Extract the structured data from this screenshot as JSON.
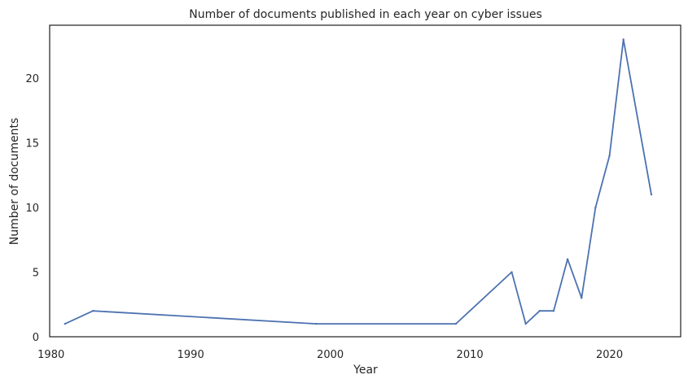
{
  "chart_data": {
    "type": "line",
    "title": "Number of documents published in each year on cyber issues",
    "xlabel": "Year",
    "ylabel": "Number of documents",
    "xlim": [
      1979.9,
      2025.1
    ],
    "ylim": [
      0,
      24.1
    ],
    "xticks": [
      1980,
      1990,
      2000,
      2010,
      2020
    ],
    "yticks": [
      0,
      5,
      10,
      15,
      20
    ],
    "grid": false,
    "legend": "none",
    "line_color": "#4c72b0",
    "series": [
      {
        "x": [
          1981,
          1983,
          1999,
          2009,
          2013,
          2014,
          2015,
          2016,
          2017,
          2018,
          2019,
          2020,
          2021,
          2023
        ],
        "y": [
          1,
          2,
          1,
          1,
          5,
          1,
          2,
          2,
          6,
          3,
          10,
          14,
          23,
          11
        ]
      }
    ]
  }
}
